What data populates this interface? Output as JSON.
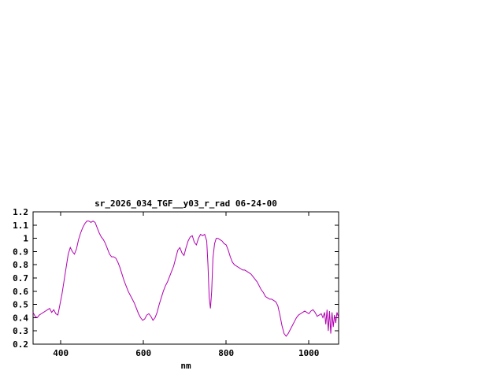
{
  "window": {
    "background_color": "#ffffff"
  },
  "chart_data": {
    "type": "line",
    "title": "sr_2026_034_TGF__y03_r_rad 06-24-00",
    "xlabel": "nm",
    "ylabel": "",
    "xlim": [
      333,
      1072
    ],
    "ylim": [
      0.2,
      1.2
    ],
    "xticks": [
      400,
      600,
      800,
      1000
    ],
    "xtick_labels": [
      "400",
      "600",
      "800",
      "1000"
    ],
    "yticks": [
      0.2,
      0.3,
      0.4,
      0.5,
      0.6,
      0.7,
      0.8,
      0.9,
      1,
      1.1,
      1.2
    ],
    "ytick_labels": [
      "0.2",
      "0.3",
      "0.4",
      "0.5",
      "0.6",
      "0.7",
      "0.8",
      "0.9",
      "1",
      "1.1",
      "1.2"
    ],
    "grid": false,
    "legend": "none",
    "line_color": "#b000b0",
    "border_color": "#000000",
    "text_color": "#000000",
    "series": [
      {
        "name": "sr_2026_034_TGF__y03_r_rad",
        "points": [
          [
            333,
            0.44
          ],
          [
            338,
            0.41
          ],
          [
            343,
            0.4
          ],
          [
            348,
            0.42
          ],
          [
            353,
            0.43
          ],
          [
            358,
            0.44
          ],
          [
            363,
            0.45
          ],
          [
            368,
            0.46
          ],
          [
            373,
            0.47
          ],
          [
            378,
            0.44
          ],
          [
            383,
            0.46
          ],
          [
            388,
            0.43
          ],
          [
            393,
            0.42
          ],
          [
            398,
            0.5
          ],
          [
            403,
            0.58
          ],
          [
            408,
            0.68
          ],
          [
            413,
            0.78
          ],
          [
            418,
            0.88
          ],
          [
            423,
            0.93
          ],
          [
            428,
            0.9
          ],
          [
            433,
            0.88
          ],
          [
            438,
            0.92
          ],
          [
            443,
            0.99
          ],
          [
            448,
            1.04
          ],
          [
            453,
            1.08
          ],
          [
            458,
            1.11
          ],
          [
            463,
            1.13
          ],
          [
            468,
            1.13
          ],
          [
            473,
            1.12
          ],
          [
            478,
            1.13
          ],
          [
            483,
            1.12
          ],
          [
            488,
            1.08
          ],
          [
            493,
            1.04
          ],
          [
            498,
            1.01
          ],
          [
            503,
            0.99
          ],
          [
            508,
            0.96
          ],
          [
            513,
            0.92
          ],
          [
            518,
            0.88
          ],
          [
            523,
            0.86
          ],
          [
            528,
            0.86
          ],
          [
            533,
            0.85
          ],
          [
            538,
            0.82
          ],
          [
            543,
            0.78
          ],
          [
            548,
            0.73
          ],
          [
            553,
            0.68
          ],
          [
            558,
            0.64
          ],
          [
            563,
            0.6
          ],
          [
            568,
            0.57
          ],
          [
            573,
            0.54
          ],
          [
            578,
            0.51
          ],
          [
            583,
            0.47
          ],
          [
            588,
            0.43
          ],
          [
            593,
            0.4
          ],
          [
            598,
            0.38
          ],
          [
            603,
            0.39
          ],
          [
            608,
            0.42
          ],
          [
            613,
            0.43
          ],
          [
            618,
            0.41
          ],
          [
            623,
            0.38
          ],
          [
            628,
            0.4
          ],
          [
            633,
            0.44
          ],
          [
            638,
            0.5
          ],
          [
            643,
            0.55
          ],
          [
            648,
            0.6
          ],
          [
            653,
            0.64
          ],
          [
            658,
            0.67
          ],
          [
            663,
            0.71
          ],
          [
            668,
            0.75
          ],
          [
            673,
            0.79
          ],
          [
            678,
            0.85
          ],
          [
            683,
            0.91
          ],
          [
            688,
            0.93
          ],
          [
            693,
            0.89
          ],
          [
            698,
            0.87
          ],
          [
            703,
            0.93
          ],
          [
            708,
            0.98
          ],
          [
            713,
            1.01
          ],
          [
            718,
            1.02
          ],
          [
            723,
            0.97
          ],
          [
            728,
            0.95
          ],
          [
            733,
            1.0
          ],
          [
            738,
            1.03
          ],
          [
            743,
            1.02
          ],
          [
            748,
            1.03
          ],
          [
            753,
            0.98
          ],
          [
            756,
            0.8
          ],
          [
            759,
            0.55
          ],
          [
            762,
            0.47
          ],
          [
            765,
            0.6
          ],
          [
            768,
            0.85
          ],
          [
            772,
            0.96
          ],
          [
            776,
            1.0
          ],
          [
            780,
            1.0
          ],
          [
            785,
            0.99
          ],
          [
            790,
            0.98
          ],
          [
            795,
            0.96
          ],
          [
            800,
            0.95
          ],
          [
            805,
            0.91
          ],
          [
            810,
            0.86
          ],
          [
            815,
            0.82
          ],
          [
            820,
            0.8
          ],
          [
            825,
            0.79
          ],
          [
            830,
            0.78
          ],
          [
            835,
            0.77
          ],
          [
            840,
            0.76
          ],
          [
            845,
            0.76
          ],
          [
            850,
            0.75
          ],
          [
            855,
            0.74
          ],
          [
            860,
            0.73
          ],
          [
            865,
            0.71
          ],
          [
            870,
            0.69
          ],
          [
            875,
            0.67
          ],
          [
            880,
            0.64
          ],
          [
            885,
            0.61
          ],
          [
            890,
            0.59
          ],
          [
            895,
            0.56
          ],
          [
            900,
            0.55
          ],
          [
            905,
            0.54
          ],
          [
            910,
            0.54
          ],
          [
            915,
            0.53
          ],
          [
            920,
            0.52
          ],
          [
            925,
            0.49
          ],
          [
            930,
            0.42
          ],
          [
            935,
            0.34
          ],
          [
            940,
            0.28
          ],
          [
            945,
            0.26
          ],
          [
            950,
            0.28
          ],
          [
            955,
            0.31
          ],
          [
            960,
            0.34
          ],
          [
            965,
            0.37
          ],
          [
            970,
            0.4
          ],
          [
            975,
            0.42
          ],
          [
            980,
            0.43
          ],
          [
            985,
            0.44
          ],
          [
            990,
            0.45
          ],
          [
            995,
            0.44
          ],
          [
            1000,
            0.43
          ],
          [
            1005,
            0.45
          ],
          [
            1010,
            0.46
          ],
          [
            1015,
            0.44
          ],
          [
            1020,
            0.41
          ],
          [
            1025,
            0.42
          ],
          [
            1030,
            0.43
          ],
          [
            1034,
            0.4
          ],
          [
            1038,
            0.44
          ],
          [
            1041,
            0.35
          ],
          [
            1044,
            0.46
          ],
          [
            1047,
            0.3
          ],
          [
            1050,
            0.45
          ],
          [
            1053,
            0.28
          ],
          [
            1056,
            0.44
          ],
          [
            1059,
            0.33
          ],
          [
            1062,
            0.42
          ],
          [
            1065,
            0.36
          ],
          [
            1068,
            0.44
          ],
          [
            1072,
            0.4
          ]
        ]
      }
    ]
  }
}
